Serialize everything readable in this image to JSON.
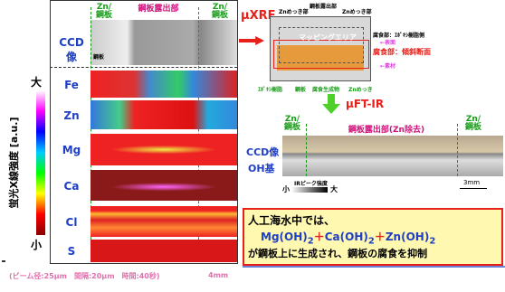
{
  "left": {
    "header": [
      "Zn/\n鋼板",
      "鋼板露出部",
      "Zn/\n鋼板"
    ],
    "ccd": "CCD像",
    "steel": "鋼板",
    "rows": [
      "Fe",
      "Zn",
      "Mg",
      "Ca",
      "Cl",
      "S"
    ],
    "axis_label": "蛍光X線強度 [a.u.]",
    "high": "大",
    "low": "小",
    "footer": "(ビーム径:25μm　間隔:20μm　時間:40秒)",
    "scale": "4mm"
  },
  "right": {
    "xrf": "μXRF",
    "schematic": {
      "top": [
        "Znめっき部",
        "鋼板露出部",
        "Znめっき部"
      ],
      "area": "マッピングエリア",
      "side": [
        "腐食部：ｴﾎﾟｷｼ樹脂側",
        "←表面",
        "腐食部：傾斜断面",
        "←素材"
      ],
      "bottom": [
        "ｴﾎﾟｷｼ樹脂",
        "鋼板",
        "腐食生成物",
        "Znめっき"
      ]
    },
    "ftir": "μFT-IR",
    "header": [
      "Zn/\n鋼板",
      "鋼板露出部(Zn除去)",
      "Zn/\n鋼板"
    ],
    "ccd": "CCD像",
    "oh": "OH基",
    "ir_label": "IRピーク強度",
    "low": "小",
    "high": "大",
    "scale": "3mm",
    "box": {
      "line1": "人工海水中では、",
      "formula": [
        "Mg(OH)",
        "2",
        "＋",
        "Ca(OH)",
        "2",
        "＋",
        "Zn(OH)",
        "2"
      ],
      "line3": "が鋼板上に生成され、鋼板の腐食を抑制"
    }
  }
}
